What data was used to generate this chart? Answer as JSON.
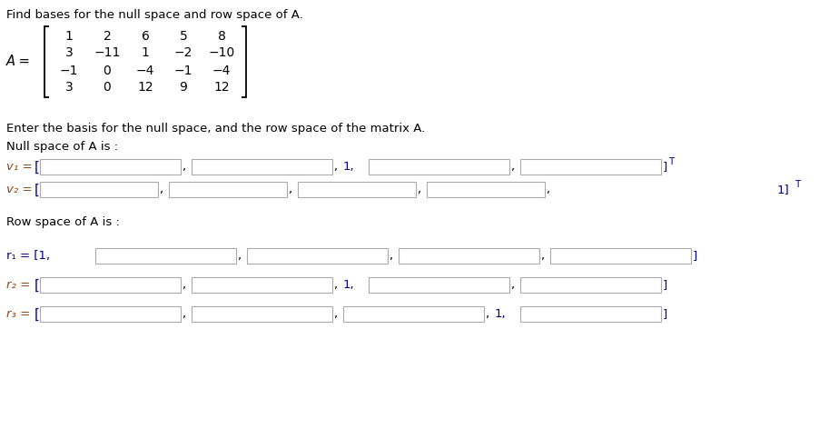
{
  "title": "Find bases for the null space and row space of A.",
  "matrix": [
    [
      "1",
      "2",
      "6",
      "5",
      "8"
    ],
    [
      "3",
      "−11",
      "1",
      "−2",
      "−10"
    ],
    [
      "−1",
      "0",
      "−4",
      "−1",
      "−4"
    ],
    [
      "3",
      "0",
      "12",
      "9",
      "12"
    ]
  ],
  "instruction": "Enter the basis for the null space, and the row space of the matrix A.",
  "null_space_label": "Null space of A is :",
  "row_space_label": "Row space of A is :",
  "bg_color": "#ffffff",
  "text_color": "#000000",
  "italic_label_color": "#8B4513",
  "blue_text_color": "#00008B",
  "box_edge_color": "#aaaaaa",
  "title_fontsize": 9.5,
  "body_fontsize": 9.5
}
